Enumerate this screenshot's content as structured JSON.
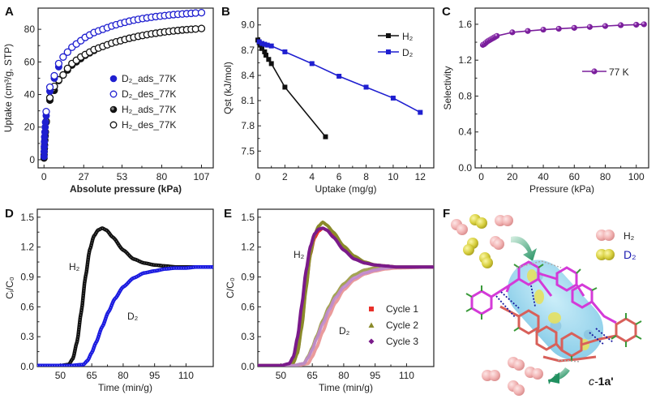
{
  "chart_data": [
    {
      "panel": "A",
      "type": "scatter",
      "xlabel": "Absolute pressure (kPa)",
      "ylabel": "Uptake (cm³/g, STP)",
      "xlim": [
        -4,
        115
      ],
      "ylim": [
        -5,
        93
      ],
      "xticks": [
        0,
        27,
        53,
        80,
        107
      ],
      "yticks": [
        0,
        20,
        40,
        60,
        80
      ],
      "legend_position": "center-right",
      "series": [
        {
          "name": "D₂_ads_77K",
          "marker": "filled-circle",
          "color": "#1f1fd0",
          "x": [
            0.05,
            0.1,
            0.2,
            0.3,
            0.4,
            0.6,
            0.8,
            1,
            1.5,
            4,
            7,
            10,
            13,
            16,
            19,
            22,
            25,
            28,
            31,
            34,
            37,
            40,
            43,
            46,
            49,
            52,
            55,
            58,
            61,
            64,
            67,
            70,
            73,
            76,
            79,
            82,
            85,
            88,
            91,
            94,
            97,
            100,
            103,
            107
          ],
          "y": [
            2,
            5,
            8,
            11,
            14,
            17,
            20,
            23,
            27,
            42,
            50,
            57,
            63,
            66,
            69,
            71,
            73,
            75,
            76.5,
            78,
            79,
            80,
            81,
            82,
            82.8,
            83.6,
            84.3,
            85,
            85.6,
            86.1,
            86.6,
            87,
            87.4,
            87.8,
            88.1,
            88.4,
            88.7,
            89,
            89.2,
            89.4,
            89.6,
            89.8,
            90,
            90.2
          ]
        },
        {
          "name": "D₂_des_77K",
          "marker": "open-circle",
          "color": "#1f1fd0",
          "x": [
            1.5,
            4,
            7,
            10,
            13,
            16,
            19,
            22,
            25,
            28,
            31,
            34,
            37,
            40,
            43,
            46,
            49,
            52,
            55,
            58,
            61,
            64,
            67,
            70,
            73,
            76,
            79,
            82,
            85,
            88,
            91,
            94,
            97,
            100,
            103,
            107
          ],
          "y": [
            29.5,
            44.5,
            51.5,
            59,
            63,
            66,
            69,
            71,
            73,
            75,
            76.5,
            78,
            79,
            80,
            81,
            82,
            82.8,
            83.6,
            84.3,
            85,
            85.6,
            86.1,
            86.6,
            87,
            87.4,
            87.8,
            88.1,
            88.4,
            88.7,
            89,
            89.2,
            89.4,
            89.6,
            89.8,
            90,
            90.2
          ]
        },
        {
          "name": "H₂_ads_77K",
          "marker": "half-filled-circle",
          "color": "#111111",
          "x": [
            0.05,
            0.1,
            0.2,
            0.3,
            0.4,
            0.6,
            0.8,
            1,
            1.5,
            4,
            7,
            10,
            13,
            16,
            19,
            22,
            25,
            28,
            31,
            34,
            37,
            40,
            43,
            46,
            49,
            52,
            55,
            58,
            61,
            64,
            67,
            70,
            73,
            76,
            79,
            82,
            85,
            88,
            91,
            94,
            97,
            100,
            103,
            107
          ],
          "y": [
            1,
            3,
            5,
            7,
            9,
            12,
            14.5,
            17,
            23,
            36.5,
            42.5,
            48.5,
            52,
            55,
            58,
            60,
            62,
            64,
            65.5,
            67,
            68.5,
            69.5,
            70.5,
            71.5,
            72.3,
            73,
            73.8,
            74.5,
            75.1,
            75.7,
            76.2,
            76.7,
            77.2,
            77.6,
            78,
            78.4,
            78.7,
            79,
            79.3,
            79.6,
            79.8,
            80,
            80.2,
            80.5
          ]
        },
        {
          "name": "H₂_des_77K",
          "marker": "open-circle",
          "color": "#111111",
          "x": [
            1.5,
            4,
            7,
            10,
            13,
            16,
            19,
            22,
            25,
            28,
            31,
            34,
            37,
            40,
            43,
            46,
            49,
            52,
            55,
            58,
            61,
            64,
            67,
            70,
            73,
            76,
            79,
            82,
            85,
            88,
            91,
            94,
            97,
            100,
            103,
            107
          ],
          "y": [
            23.5,
            38,
            45,
            49,
            52,
            56,
            59,
            61,
            63,
            64.5,
            66,
            67.5,
            68.5,
            69.5,
            70.5,
            71.5,
            72.3,
            73,
            73.8,
            74.5,
            75.1,
            75.7,
            76.2,
            76.7,
            77.2,
            77.6,
            78,
            78.4,
            78.7,
            79,
            79.3,
            79.6,
            79.8,
            80,
            80.2,
            80.5
          ]
        }
      ]
    },
    {
      "panel": "B",
      "type": "line",
      "xlabel": "Uptake (mg/g)",
      "ylabel": "Qst (kJ/mol)",
      "xlim": [
        0,
        13
      ],
      "ylim": [
        7.3,
        9.2
      ],
      "xticks": [
        0,
        2,
        4,
        6,
        8,
        10,
        12
      ],
      "yticks": [
        7.5,
        7.8,
        8.1,
        8.4,
        8.7,
        9.0
      ],
      "ytick_labels": [
        "7.5",
        "7.8",
        "8.1",
        "8.4",
        "8.7",
        "9.0"
      ],
      "legend_position": "top-right",
      "series": [
        {
          "name": "H₂",
          "marker": "square",
          "color": "#111111",
          "x": [
            0,
            0.1,
            0.2,
            0.3,
            0.5,
            0.6,
            0.8,
            1,
            2,
            5
          ],
          "y": [
            8.82,
            8.79,
            8.76,
            8.72,
            8.68,
            8.64,
            8.59,
            8.54,
            8.26,
            7.67
          ]
        },
        {
          "name": "D₂",
          "marker": "square",
          "color": "#1f1fd0",
          "x": [
            0.1,
            0.3,
            0.5,
            0.7,
            1,
            2,
            4,
            6,
            8,
            10,
            12
          ],
          "y": [
            8.8,
            8.78,
            8.77,
            8.76,
            8.75,
            8.68,
            8.54,
            8.39,
            8.26,
            8.13,
            7.96
          ]
        }
      ]
    },
    {
      "panel": "C",
      "type": "line",
      "xlabel": "Pressure (kPa)",
      "ylabel": "Selectivity",
      "xlim": [
        -4,
        108
      ],
      "ylim": [
        0,
        1.78
      ],
      "xticks": [
        0,
        20,
        40,
        60,
        80,
        100
      ],
      "yticks": [
        0,
        0.4,
        0.8,
        1.2,
        1.6
      ],
      "ytick_labels": [
        "0.0",
        "0.4",
        "0.8",
        "1.2",
        "1.6"
      ],
      "legend_position": "center-right",
      "series": [
        {
          "name": "77 K",
          "marker": "sphere",
          "color": "#7a1e9c",
          "x": [
            1,
            2,
            3,
            4,
            5,
            6,
            7,
            8,
            9,
            10,
            20,
            30,
            40,
            50,
            60,
            70,
            80,
            90,
            100,
            105
          ],
          "y": [
            1.37,
            1.38,
            1.395,
            1.41,
            1.42,
            1.43,
            1.44,
            1.45,
            1.46,
            1.47,
            1.51,
            1.525,
            1.54,
            1.55,
            1.56,
            1.57,
            1.58,
            1.59,
            1.595,
            1.6
          ]
        }
      ]
    },
    {
      "panel": "D",
      "type": "line",
      "xlabel": "Time (min/g)",
      "ylabel": "Cᵢ/C₀",
      "xlim": [
        39,
        123
      ],
      "ylim": [
        0,
        1.58
      ],
      "xticks": [
        50,
        65,
        80,
        95,
        110
      ],
      "yticks": [
        0,
        0.3,
        0.6,
        0.9,
        1.2,
        1.5
      ],
      "ytick_labels": [
        "0.0",
        "0.3",
        "0.6",
        "0.9",
        "1.2",
        "1.5"
      ],
      "annotations": [
        "H₂",
        "D₂"
      ],
      "series": [
        {
          "name": "H₂",
          "color": "#111111",
          "x": [
            39,
            50,
            54,
            56,
            58,
            60,
            62,
            64,
            66,
            68,
            70,
            72,
            75,
            80,
            85,
            90,
            95,
            100,
            105,
            110,
            115,
            123
          ],
          "y": [
            0.01,
            0.01,
            0.02,
            0.08,
            0.25,
            0.55,
            0.9,
            1.17,
            1.31,
            1.37,
            1.39,
            1.37,
            1.3,
            1.17,
            1.08,
            1.04,
            1.02,
            1.01,
            1.0,
            1.0,
            1.0,
            1.0
          ]
        },
        {
          "name": "D₂",
          "color": "#1a1ae0",
          "x": [
            39,
            55,
            61,
            63,
            65,
            67,
            70,
            73,
            76,
            80,
            85,
            90,
            95,
            100,
            105,
            110,
            115,
            123
          ],
          "y": [
            0.01,
            0.01,
            0.02,
            0.06,
            0.14,
            0.24,
            0.4,
            0.55,
            0.68,
            0.8,
            0.89,
            0.94,
            0.96,
            0.98,
            0.99,
            0.99,
            1.0,
            1.0
          ]
        }
      ]
    },
    {
      "panel": "E",
      "type": "line",
      "xlabel": "Time (min/g)",
      "ylabel": "C/C₀",
      "xlim": [
        39,
        123
      ],
      "ylim": [
        0,
        1.58
      ],
      "xticks": [
        50,
        65,
        80,
        95,
        110
      ],
      "yticks": [
        0,
        0.3,
        0.6,
        0.9,
        1.2,
        1.5
      ],
      "ytick_labels": [
        "0.0",
        "0.3",
        "0.6",
        "0.9",
        "1.2",
        "1.5"
      ],
      "annotations": [
        "H₂",
        "D₂"
      ],
      "legend_position": "bottom-right",
      "series": [
        {
          "name": "Cycle 1",
          "marker": "square",
          "color": "#e8302a",
          "h2_x": [
            39,
            52,
            56,
            58,
            60,
            62,
            64,
            66,
            68,
            70,
            72,
            75,
            80,
            85,
            90,
            95,
            100,
            105,
            110,
            123
          ],
          "h2_y": [
            0.01,
            0.01,
            0.04,
            0.15,
            0.42,
            0.8,
            1.12,
            1.29,
            1.36,
            1.39,
            1.37,
            1.31,
            1.18,
            1.09,
            1.04,
            1.02,
            1.01,
            1.0,
            1.0,
            1.0
          ],
          "d2_x": [
            39,
            58,
            63,
            65,
            67,
            70,
            73,
            76,
            80,
            85,
            90,
            95,
            100,
            105,
            123
          ],
          "d2_y": [
            0.01,
            0.01,
            0.03,
            0.1,
            0.19,
            0.35,
            0.51,
            0.64,
            0.77,
            0.87,
            0.93,
            0.96,
            0.98,
            0.99,
            1.0
          ]
        },
        {
          "name": "Cycle 2",
          "marker": "triangle",
          "color": "#8a8a2a",
          "h2_x": [
            39,
            52,
            56,
            58,
            60,
            62,
            64,
            66,
            68,
            70,
            72,
            75,
            80,
            85,
            90,
            95,
            100,
            105,
            110,
            123
          ],
          "h2_y": [
            0.01,
            0.01,
            0.04,
            0.14,
            0.4,
            0.78,
            1.12,
            1.32,
            1.41,
            1.45,
            1.42,
            1.35,
            1.21,
            1.11,
            1.05,
            1.02,
            1.01,
            1.0,
            1.0,
            1.0
          ],
          "d2_x": [
            39,
            56,
            61,
            63,
            65,
            67,
            70,
            73,
            76,
            80,
            85,
            90,
            95,
            100,
            105,
            123
          ],
          "d2_y": [
            0.01,
            0.01,
            0.03,
            0.1,
            0.19,
            0.3,
            0.46,
            0.6,
            0.72,
            0.83,
            0.92,
            0.97,
            0.99,
            1.0,
            1.0,
            1.0
          ]
        },
        {
          "name": "Cycle 3",
          "marker": "diamond",
          "color": "#7a1a8a",
          "h2_x": [
            39,
            50,
            54,
            56,
            58,
            60,
            62,
            64,
            66,
            68,
            70,
            72,
            75,
            80,
            85,
            90,
            95,
            100,
            105,
            110,
            123
          ],
          "h2_y": [
            0.01,
            0.01,
            0.03,
            0.1,
            0.3,
            0.62,
            0.96,
            1.2,
            1.33,
            1.38,
            1.39,
            1.37,
            1.3,
            1.17,
            1.08,
            1.04,
            1.02,
            1.01,
            1.0,
            1.0,
            1.0
          ],
          "d2_x": [
            39,
            56,
            61,
            63,
            65,
            67,
            70,
            73,
            76,
            80,
            85,
            90,
            95,
            100,
            105,
            123
          ],
          "d2_y": [
            0.01,
            0.01,
            0.03,
            0.09,
            0.17,
            0.28,
            0.43,
            0.57,
            0.69,
            0.8,
            0.89,
            0.94,
            0.97,
            0.99,
            1.0,
            1.0
          ]
        }
      ]
    }
  ],
  "panels": {
    "A": {
      "label": "A"
    },
    "B": {
      "label": "B"
    },
    "C": {
      "label": "C"
    },
    "D": {
      "label": "D",
      "h2_label": "H₂",
      "d2_label": "D₂"
    },
    "E": {
      "label": "E",
      "h2_label": "H₂",
      "d2_label": "D₂"
    },
    "F": {
      "label": "F",
      "legend_h2": "H₂",
      "legend_d2": "D₂",
      "structure_label_italic": "c-",
      "structure_label_bold": "1a'",
      "colors": {
        "h2_molecule": "#f2b8b8",
        "d2_molecule": "#d8d040",
        "cavity": "#8fd3ee",
        "framework_upper": "#d43ad8",
        "framework_lower": "#d8605a",
        "arrow": "#2a9a6a",
        "d2_label_color": "#1a1ab0"
      }
    }
  }
}
